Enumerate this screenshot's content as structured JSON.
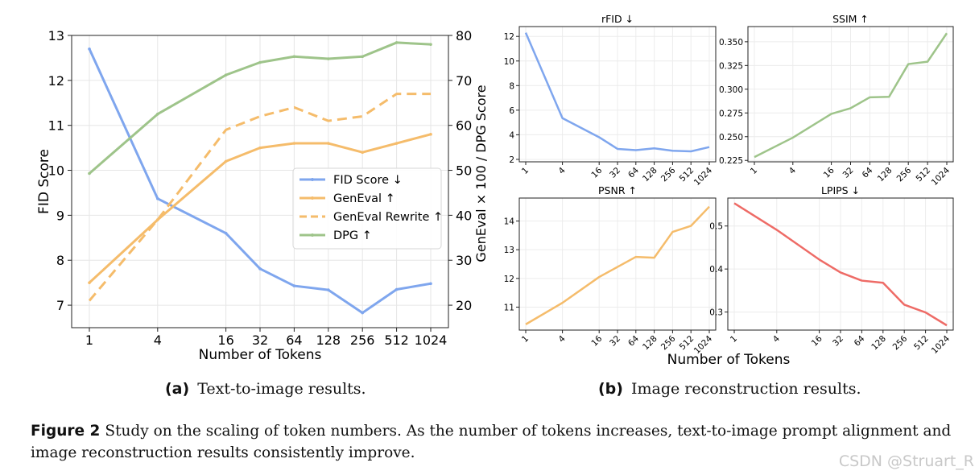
{
  "chart_data": [
    {
      "type": "line",
      "panel": "a",
      "xlabel": "Number of Tokens",
      "ylabel_left": "FID Score",
      "ylabel_right": "GenEval × 100 / DPG Score",
      "categories": [
        "1",
        "4",
        "16",
        "32",
        "64",
        "128",
        "256",
        "512",
        "1024"
      ],
      "ylim_left": [
        6.5,
        13
      ],
      "ylim_right": [
        15,
        80
      ],
      "left_ticks": [
        "7",
        "8",
        "9",
        "10",
        "11",
        "12",
        "13"
      ],
      "right_ticks": [
        "20",
        "30",
        "40",
        "50",
        "60",
        "70",
        "80"
      ],
      "grid": true,
      "legend_position": "center-right",
      "series": [
        {
          "name": "FID Score ↓",
          "axis": "left",
          "style": "solid",
          "color": "#7fa6ee",
          "values": [
            12.7,
            9.37,
            8.6,
            7.81,
            7.43,
            7.34,
            6.83,
            7.35,
            7.48
          ]
        },
        {
          "name": "GenEval ↑",
          "axis": "right",
          "style": "solid",
          "color": "#f5bc6b",
          "values": [
            25,
            39,
            52,
            55,
            56,
            56,
            54,
            56,
            58
          ]
        },
        {
          "name": "GenEval Rewrite ↑",
          "axis": "right",
          "style": "dashed",
          "color": "#f5bc6b",
          "values": [
            21,
            39,
            59,
            62,
            64,
            61,
            62,
            67,
            67
          ]
        },
        {
          "name": "DPG ↑",
          "axis": "right",
          "style": "solid",
          "color": "#9ec48a",
          "values": [
            49.3,
            62.5,
            71.2,
            74,
            75.3,
            74.8,
            75.3,
            78.4,
            78
          ]
        }
      ]
    },
    {
      "type": "line",
      "panel": "b",
      "title": "rFID ↓",
      "color": "#7fa6ee",
      "categories": [
        "1",
        "4",
        "16",
        "32",
        "64",
        "128",
        "256",
        "512",
        "1024"
      ],
      "values": [
        12.3,
        5.35,
        3.8,
        2.85,
        2.75,
        2.9,
        2.7,
        2.65,
        3.0
      ],
      "ylim": [
        1.8,
        12.8
      ],
      "ticks": [
        "2",
        "4",
        "6",
        "8",
        "10",
        "12"
      ]
    },
    {
      "type": "line",
      "panel": "b",
      "title": "SSIM ↑",
      "color": "#9ec48a",
      "categories": [
        "1",
        "4",
        "16",
        "32",
        "64",
        "128",
        "256",
        "512",
        "1024"
      ],
      "values": [
        0.2285,
        0.249,
        0.274,
        0.28,
        0.2915,
        0.292,
        0.3265,
        0.329,
        0.359
      ],
      "ylim": [
        0.2235,
        0.366
      ],
      "ticks": [
        "0.225",
        "0.250",
        "0.275",
        "0.300",
        "0.325",
        "0.350"
      ]
    },
    {
      "type": "line",
      "panel": "b",
      "title": "PSNR ↑",
      "color": "#f5bc6b",
      "categories": [
        "1",
        "4",
        "16",
        "32",
        "64",
        "128",
        "256",
        "512",
        "1024"
      ],
      "values": [
        10.4,
        11.15,
        12.05,
        12.4,
        12.75,
        12.72,
        13.62,
        13.83,
        14.5
      ],
      "ylim": [
        10.2,
        14.8
      ],
      "ticks": [
        "11",
        "12",
        "13",
        "14"
      ]
    },
    {
      "type": "line",
      "panel": "b",
      "title": "LPIPS ↓",
      "color": "#ee6b66",
      "categories": [
        "1",
        "4",
        "16",
        "32",
        "64",
        "128",
        "256",
        "512",
        "1024"
      ],
      "values": [
        0.553,
        0.491,
        0.422,
        0.392,
        0.373,
        0.368,
        0.317,
        0.299,
        0.269
      ],
      "ylim": [
        0.258,
        0.565
      ],
      "ticks": [
        "0.3",
        "0.4",
        "0.5"
      ]
    }
  ],
  "xlabel_b": "Number of Tokens",
  "captions": {
    "a_label": "(a)",
    "a_text": "Text-to-image results.",
    "b_label": "(b)",
    "b_text": "Image reconstruction results.",
    "figure_label": "Figure 2",
    "figure_text": "Study on the scaling of token numbers. As the number of tokens increases, text-to-image prompt alignment and image reconstruction results consistently improve."
  },
  "watermark": "CSDN @Struart_R"
}
